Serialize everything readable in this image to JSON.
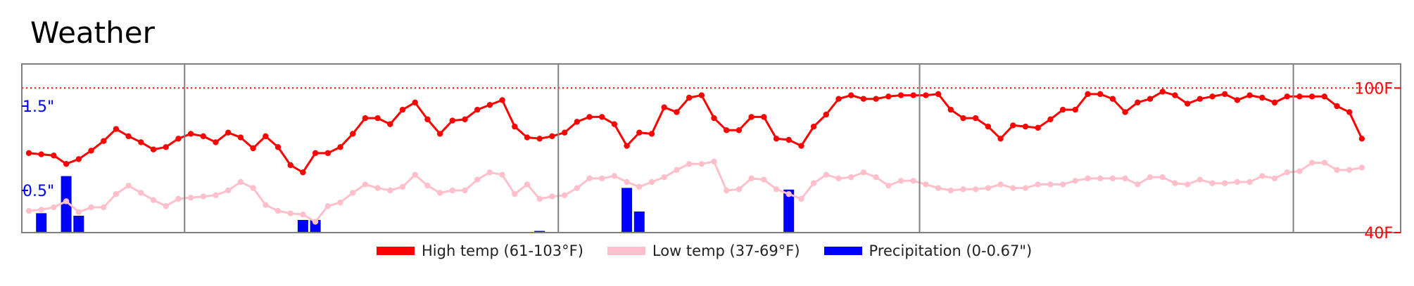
{
  "title": "Weather",
  "chart_data": {
    "type": "line",
    "title": "Weather",
    "x_count": 108,
    "month_dividers": [
      12.5,
      42.5,
      71.5,
      101.5
    ],
    "temp_axis": {
      "range": [
        40,
        110
      ],
      "ticks": [
        {
          "value": 100,
          "label": "100F"
        },
        {
          "value": 40,
          "label": "40F"
        }
      ],
      "reference_line": 100
    },
    "precip_axis": {
      "range": [
        0,
        2
      ],
      "ticks": [
        {
          "value": 1.5,
          "label": "1.5\""
        },
        {
          "value": 0.5,
          "label": "0.5\""
        }
      ]
    },
    "series": [
      {
        "name": "High temp (61-103°F)",
        "color": "#ff0000",
        "values": [
          73,
          72.5,
          72,
          68.5,
          70.5,
          74,
          78,
          83,
          80,
          77.5,
          74.5,
          75.5,
          79,
          81,
          80,
          77.5,
          81.5,
          79.5,
          75,
          80,
          75.5,
          68,
          65,
          73,
          73,
          75.5,
          81,
          87.5,
          87.5,
          85,
          91,
          94,
          87,
          81,
          86.5,
          87,
          91,
          93,
          95,
          84,
          79.5,
          79,
          80,
          81.5,
          86,
          88,
          88,
          85,
          76,
          81.5,
          81,
          92,
          90,
          96,
          97,
          87.5,
          82.5,
          82.5,
          88,
          88,
          79,
          78.5,
          76,
          84,
          89,
          95.5,
          97,
          95.5,
          95.5,
          96.5,
          97,
          97,
          97,
          97.5,
          91,
          87.5,
          87.5,
          84,
          79,
          84.5,
          84,
          83.5,
          87,
          91,
          91,
          97.5,
          97.5,
          95.5,
          90,
          94,
          95.5,
          98.5,
          97,
          93.5,
          95.5,
          96.5,
          97.5,
          95,
          97,
          96,
          94,
          96.5,
          96.5,
          96.5,
          96.5,
          92.5,
          90,
          79
        ]
      },
      {
        "name": "Low temp (37-69°F)",
        "color": "#ffc0cb",
        "values": [
          49,
          49.5,
          50.5,
          53,
          48.5,
          50.5,
          50.5,
          56,
          59.5,
          56.5,
          53.5,
          51,
          54,
          54.5,
          55,
          55.5,
          57.5,
          61,
          58.5,
          51.5,
          49,
          48,
          47.5,
          44.5,
          51,
          52.5,
          56.5,
          60,
          58.5,
          57.5,
          59,
          64,
          59.5,
          56.5,
          57.5,
          57.5,
          62,
          65,
          64,
          56,
          60,
          54,
          55,
          55.5,
          58.5,
          62.5,
          62.5,
          63.5,
          61,
          59,
          61,
          63,
          66,
          68.5,
          68.5,
          69.5,
          57.5,
          58,
          62.5,
          62,
          58,
          56,
          54,
          60.5,
          64,
          62.5,
          63,
          65,
          63,
          59.5,
          61.5,
          61.5,
          60,
          58.5,
          57.5,
          58,
          58,
          58.5,
          60,
          58.5,
          58.5,
          60,
          60,
          60,
          61.5,
          62.5,
          62.5,
          62.5,
          62.5,
          60,
          63,
          63,
          60.5,
          60,
          62,
          60.5,
          60.5,
          61,
          61,
          63.5,
          62.5,
          65,
          65.5,
          69,
          69,
          66,
          66,
          67
        ]
      },
      {
        "name": "Precipitation (0-0.67\")",
        "color": "#0000ff",
        "bars": [
          [
            1,
            0.23
          ],
          [
            3,
            0.67
          ],
          [
            4,
            0.2
          ],
          [
            22,
            0.15
          ],
          [
            23,
            0.15
          ],
          [
            41,
            0.02
          ],
          [
            48,
            0.53
          ],
          [
            49,
            0.25
          ],
          [
            61,
            0.51
          ]
        ]
      }
    ]
  }
}
